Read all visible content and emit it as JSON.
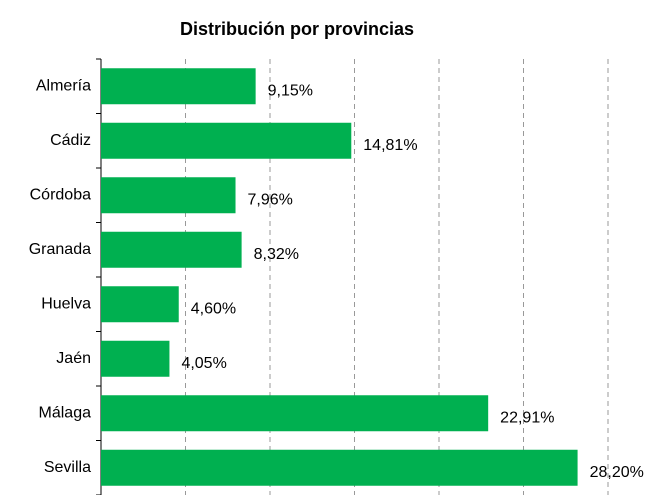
{
  "chart_data": {
    "type": "hbar",
    "title": "Distribución por provincias",
    "categories": [
      "Almería",
      "Cádiz",
      "Córdoba",
      "Granada",
      "Huelva",
      "Jaén",
      "Málaga",
      "Sevilla"
    ],
    "values": [
      9.15,
      14.81,
      7.96,
      8.32,
      4.6,
      4.05,
      22.91,
      28.2
    ],
    "value_labels": [
      "9,15%",
      "14,81%",
      "7,96%",
      "8,32%",
      "4,60%",
      "4,05%",
      "22,91%",
      "28,20%"
    ],
    "color": "#00b050",
    "xlim": [
      0,
      30
    ],
    "xticks": [
      0,
      5,
      10,
      15,
      20,
      25,
      30
    ],
    "grid": true
  }
}
